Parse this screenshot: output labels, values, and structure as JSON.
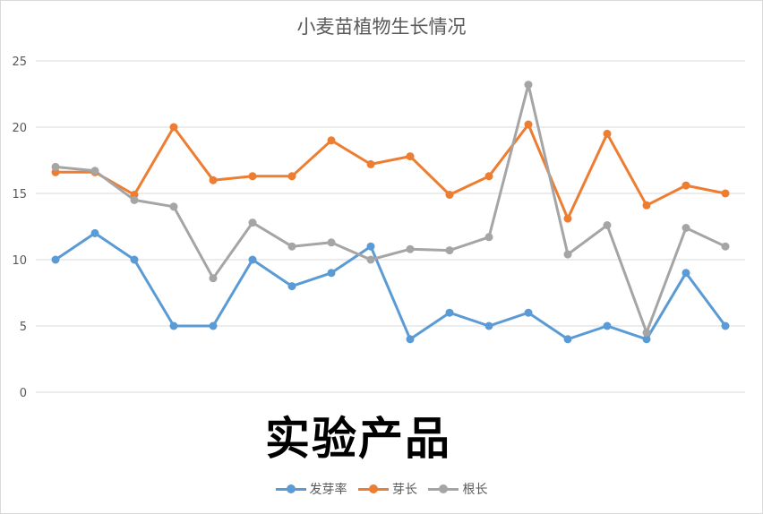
{
  "watermark": "实验产品",
  "chart_data": {
    "type": "line",
    "title": "小麦苗植物生长情况",
    "xlabel": "",
    "ylabel": "",
    "ylim": [
      0,
      25
    ],
    "yticks": [
      0,
      5,
      10,
      15,
      20,
      25
    ],
    "grid": true,
    "legend_position": "bottom",
    "x": [
      1,
      2,
      3,
      4,
      5,
      6,
      7,
      8,
      9,
      10,
      11,
      12,
      13,
      14,
      15,
      16,
      17,
      18
    ],
    "series": [
      {
        "name": "发芽率",
        "color": "#5b9bd5",
        "values": [
          10,
          12,
          10,
          5,
          5,
          10,
          8,
          9,
          11,
          4,
          6,
          5,
          6,
          4,
          5,
          4,
          9,
          5
        ]
      },
      {
        "name": "芽长",
        "color": "#ed7d31",
        "values": [
          16.6,
          16.6,
          14.9,
          20,
          16,
          16.3,
          16.3,
          19,
          17.2,
          17.8,
          14.9,
          16.3,
          20.2,
          13.1,
          19.5,
          14.1,
          15.6,
          15
        ]
      },
      {
        "name": "根长",
        "color": "#a5a5a5",
        "values": [
          17,
          16.7,
          14.5,
          14,
          8.6,
          12.8,
          11,
          11.3,
          10,
          10.8,
          10.7,
          11.7,
          23.2,
          10.4,
          12.6,
          4.5,
          12.4,
          11
        ]
      }
    ]
  }
}
